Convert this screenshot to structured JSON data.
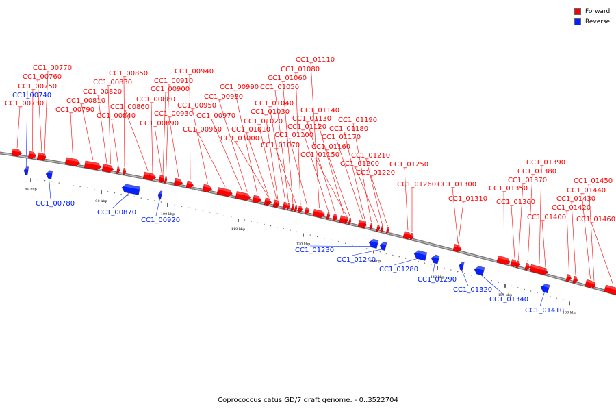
{
  "legend": {
    "forward_label": "Forward",
    "reverse_label": "Reverse",
    "forward_color": "#ff0000",
    "reverse_color": "#0022ff"
  },
  "caption": "Coprococcus catus GD/7 draft genome. - 0..3522704",
  "ticks": [
    "80 kbp",
    "90 kbp",
    "100 kbp",
    "110 kbp",
    "120 kbp",
    "130 kbp",
    "140 kbp",
    "150 kbp",
    "160 kbp"
  ],
  "forward_genes": [
    "CC1_00730",
    "CC1_00750",
    "CC1_00760",
    "CC1_00770",
    "CC1_00790",
    "CC1_00810",
    "CC1_00820",
    "CC1_00830",
    "CC1_00840",
    "CC1_00850",
    "CC1_00860",
    "CC1_00880",
    "CC1_00890",
    "CC1_00900",
    "CC1_00910",
    "CC1_00930",
    "CC1_00940",
    "CC1_00950",
    "CC1_00960",
    "CC1_00970",
    "CC1_00980",
    "CC1_00990",
    "CC1_01000",
    "CC1_01010",
    "CC1_01020",
    "CC1_01030",
    "CC1_01040",
    "CC1_01050",
    "CC1_01060",
    "CC1_01070",
    "CC1_01080",
    "CC1_01100",
    "CC1_01110",
    "CC1_01120",
    "CC1_01130",
    "CC1_01140",
    "CC1_01150",
    "CC1_01160",
    "CC1_01170",
    "CC1_01180",
    "CC1_01190",
    "CC1_01200",
    "CC1_01210",
    "CC1_01220",
    "CC1_01250",
    "CC1_01260",
    "CC1_01300",
    "CC1_01310",
    "CC1_01350",
    "CC1_01360",
    "CC1_01370",
    "CC1_01380",
    "CC1_01390",
    "CC1_01400",
    "CC1_01420",
    "CC1_01430",
    "CC1_01440",
    "CC1_01450",
    "CC1_01460"
  ],
  "reverse_genes": [
    "CC1_00740",
    "CC1_00780",
    "CC1_00870",
    "CC1_00920",
    "CC1_01230",
    "CC1_01240",
    "CC1_01280",
    "CC1_01290",
    "CC1_01320",
    "CC1_01340",
    "CC1_01410"
  ]
}
